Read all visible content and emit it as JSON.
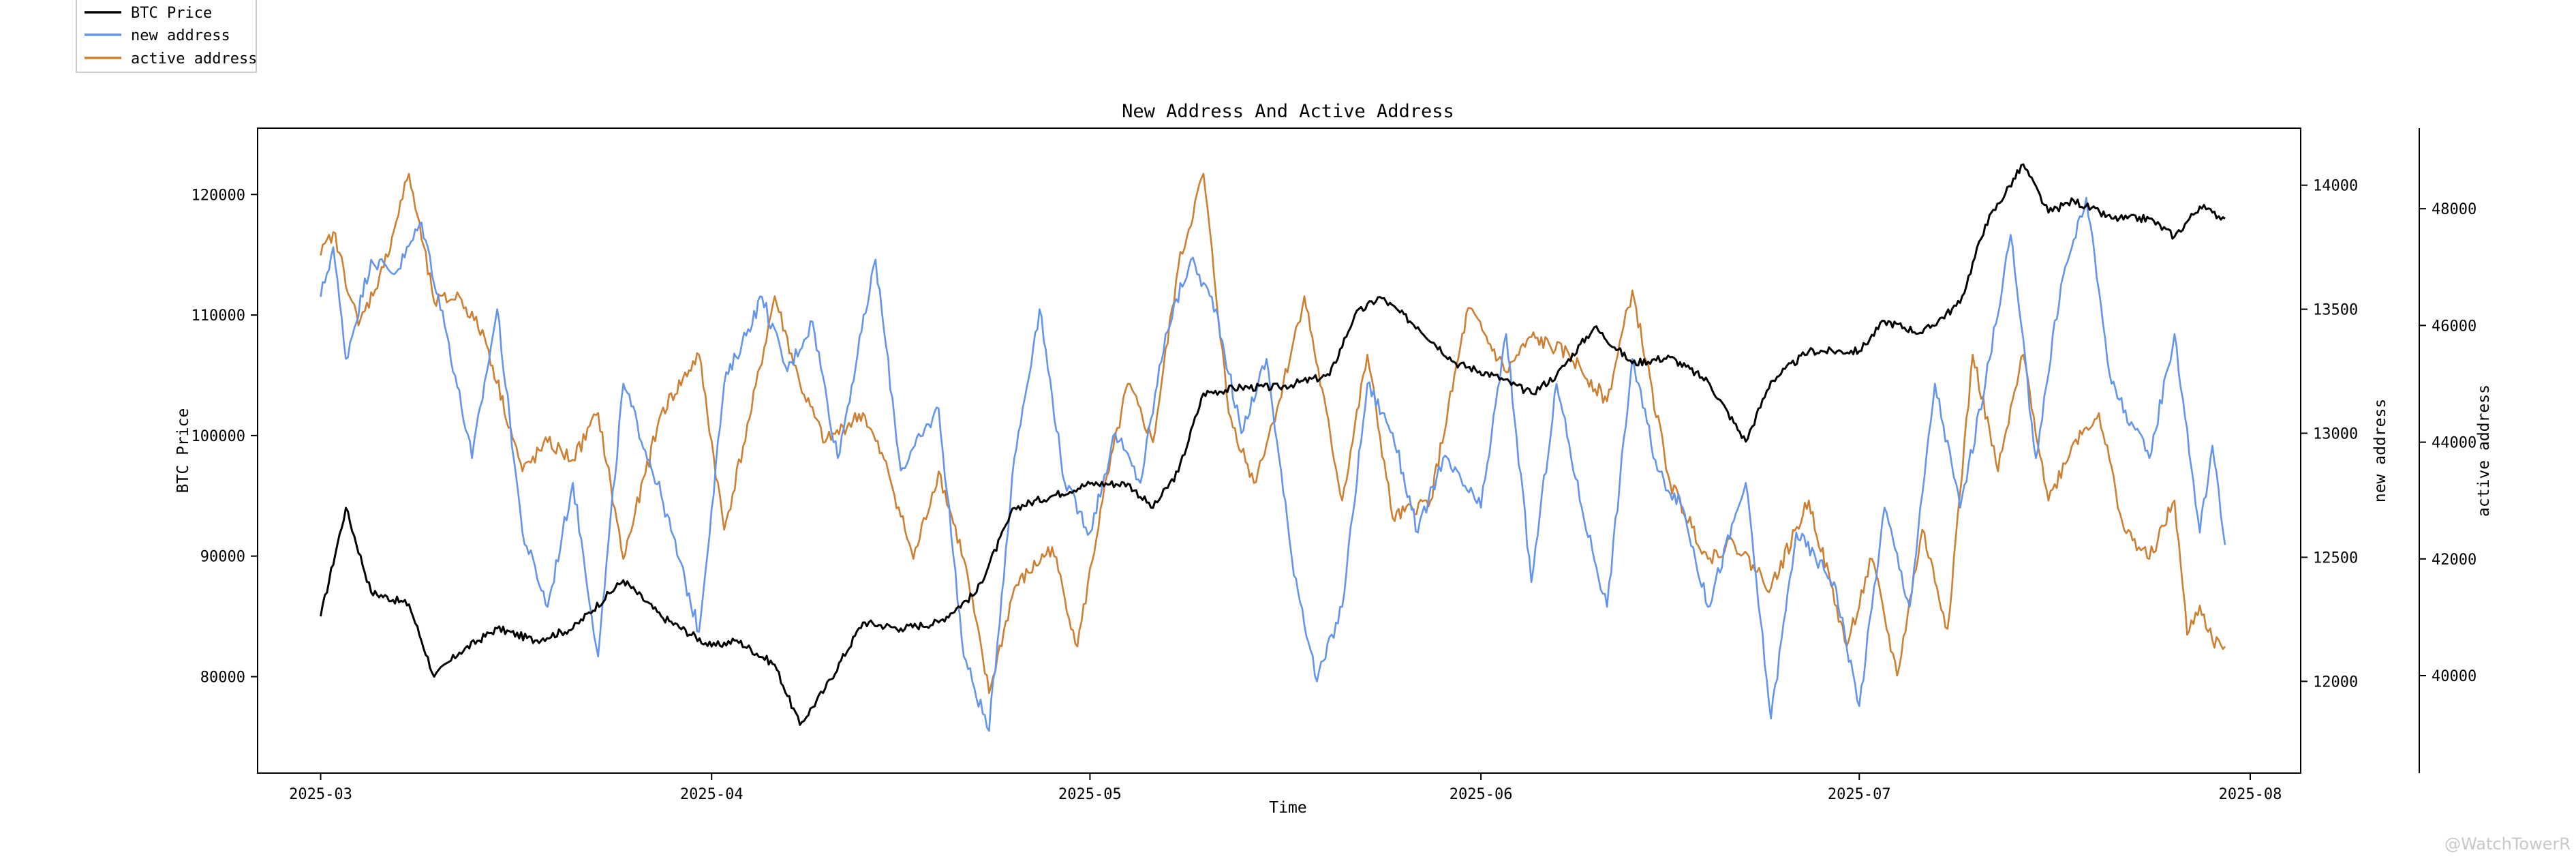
{
  "chart_data": {
    "type": "line",
    "title": "New Address And Active Address",
    "xlabel": "Time",
    "x_ticks": [
      "2025-03",
      "2025-04",
      "2025-05",
      "2025-06",
      "2025-07",
      "2025-08"
    ],
    "x_range": [
      "2025-02-24",
      "2025-08-05"
    ],
    "legend_placement": "top-left, outside the axes",
    "grid": false,
    "axes": [
      {
        "id": "price",
        "side": "left",
        "label": "BTC Price",
        "ticks": [
          80000,
          90000,
          100000,
          110000,
          120000
        ],
        "range": [
          72000,
          125500
        ]
      },
      {
        "id": "new",
        "side": "right",
        "label": "new address",
        "ticks": [
          12000,
          12500,
          13000,
          13500,
          14000
        ],
        "range": [
          11630,
          14230
        ]
      },
      {
        "id": "active",
        "side": "right-outer",
        "label": "active address",
        "ticks": [
          40000,
          42000,
          44000,
          46000,
          48000
        ],
        "range": [
          38330,
          49380
        ]
      }
    ],
    "series": [
      {
        "name": "BTC Price",
        "axis": "price",
        "color": "#000000",
        "points": [
          [
            "2025-03-01",
            85000
          ],
          [
            "2025-03-03",
            94000
          ],
          [
            "2025-03-05",
            87000
          ],
          [
            "2025-03-08",
            86000
          ],
          [
            "2025-03-10",
            80000
          ],
          [
            "2025-03-12",
            82000
          ],
          [
            "2025-03-15",
            84000
          ],
          [
            "2025-03-18",
            83000
          ],
          [
            "2025-03-21",
            84000
          ],
          [
            "2025-03-25",
            88000
          ],
          [
            "2025-03-28",
            85000
          ],
          [
            "2025-04-01",
            82500
          ],
          [
            "2025-04-03",
            83000
          ],
          [
            "2025-04-06",
            81000
          ],
          [
            "2025-04-08",
            76000
          ],
          [
            "2025-04-10",
            79000
          ],
          [
            "2025-04-13",
            84500
          ],
          [
            "2025-04-16",
            84000
          ],
          [
            "2025-04-19",
            84500
          ],
          [
            "2025-04-22",
            87000
          ],
          [
            "2025-04-25",
            94000
          ],
          [
            "2025-04-28",
            95000
          ],
          [
            "2025-05-01",
            96000
          ],
          [
            "2025-05-04",
            96000
          ],
          [
            "2025-05-06",
            94000
          ],
          [
            "2025-05-08",
            97000
          ],
          [
            "2025-05-10",
            103500
          ],
          [
            "2025-05-13",
            104000
          ],
          [
            "2025-05-16",
            104000
          ],
          [
            "2025-05-20",
            105000
          ],
          [
            "2025-05-22",
            110000
          ],
          [
            "2025-05-24",
            111500
          ],
          [
            "2025-05-27",
            109000
          ],
          [
            "2025-05-30",
            106000
          ],
          [
            "2025-06-02",
            105000
          ],
          [
            "2025-06-05",
            103500
          ],
          [
            "2025-06-07",
            105000
          ],
          [
            "2025-06-10",
            109000
          ],
          [
            "2025-06-13",
            106000
          ],
          [
            "2025-06-16",
            106500
          ],
          [
            "2025-06-19",
            104500
          ],
          [
            "2025-06-22",
            99500
          ],
          [
            "2025-06-24",
            104500
          ],
          [
            "2025-06-27",
            107000
          ],
          [
            "2025-07-01",
            107000
          ],
          [
            "2025-07-03",
            109500
          ],
          [
            "2025-07-06",
            108500
          ],
          [
            "2025-07-09",
            111000
          ],
          [
            "2025-07-11",
            117500
          ],
          [
            "2025-07-14",
            122500
          ],
          [
            "2025-07-16",
            118500
          ],
          [
            "2025-07-18",
            119500
          ],
          [
            "2025-07-21",
            118000
          ],
          [
            "2025-07-24",
            118000
          ],
          [
            "2025-07-26",
            116500
          ],
          [
            "2025-07-28",
            119000
          ],
          [
            "2025-07-29",
            118500
          ],
          [
            "2025-07-30",
            118000
          ]
        ]
      },
      {
        "name": "new address",
        "axis": "new",
        "color": "#6495ed",
        "points": [
          [
            "2025-03-01",
            13550
          ],
          [
            "2025-03-02",
            13750
          ],
          [
            "2025-03-03",
            13300
          ],
          [
            "2025-03-05",
            13700
          ],
          [
            "2025-03-07",
            13650
          ],
          [
            "2025-03-09",
            13850
          ],
          [
            "2025-03-11",
            13400
          ],
          [
            "2025-03-13",
            12900
          ],
          [
            "2025-03-15",
            13500
          ],
          [
            "2025-03-17",
            12600
          ],
          [
            "2025-03-19",
            12300
          ],
          [
            "2025-03-21",
            12800
          ],
          [
            "2025-03-23",
            12100
          ],
          [
            "2025-03-25",
            13200
          ],
          [
            "2025-03-28",
            12750
          ],
          [
            "2025-03-31",
            12200
          ],
          [
            "2025-04-02",
            13200
          ],
          [
            "2025-04-05",
            13550
          ],
          [
            "2025-04-07",
            13250
          ],
          [
            "2025-04-09",
            13450
          ],
          [
            "2025-04-11",
            12900
          ],
          [
            "2025-04-14",
            13700
          ],
          [
            "2025-04-16",
            12850
          ],
          [
            "2025-04-19",
            13100
          ],
          [
            "2025-04-21",
            12100
          ],
          [
            "2025-04-23",
            11800
          ],
          [
            "2025-04-25",
            12900
          ],
          [
            "2025-04-27",
            13500
          ],
          [
            "2025-04-29",
            12800
          ],
          [
            "2025-05-01",
            12600
          ],
          [
            "2025-05-03",
            13000
          ],
          [
            "2025-05-05",
            12800
          ],
          [
            "2025-05-07",
            13400
          ],
          [
            "2025-05-09",
            13700
          ],
          [
            "2025-05-11",
            13500
          ],
          [
            "2025-05-13",
            13000
          ],
          [
            "2025-05-15",
            13300
          ],
          [
            "2025-05-17",
            12500
          ],
          [
            "2025-05-19",
            12000
          ],
          [
            "2025-05-21",
            12300
          ],
          [
            "2025-05-23",
            13200
          ],
          [
            "2025-05-25",
            13000
          ],
          [
            "2025-05-27",
            12600
          ],
          [
            "2025-05-29",
            12900
          ],
          [
            "2025-06-01",
            12700
          ],
          [
            "2025-06-03",
            13400
          ],
          [
            "2025-06-05",
            12400
          ],
          [
            "2025-06-07",
            13200
          ],
          [
            "2025-06-09",
            12700
          ],
          [
            "2025-06-11",
            12300
          ],
          [
            "2025-06-13",
            13300
          ],
          [
            "2025-06-15",
            12850
          ],
          [
            "2025-06-17",
            12700
          ],
          [
            "2025-06-19",
            12300
          ],
          [
            "2025-06-22",
            12800
          ],
          [
            "2025-06-24",
            11850
          ],
          [
            "2025-06-26",
            12600
          ],
          [
            "2025-06-29",
            12400
          ],
          [
            "2025-07-01",
            11900
          ],
          [
            "2025-07-03",
            12700
          ],
          [
            "2025-07-05",
            12300
          ],
          [
            "2025-07-07",
            13200
          ],
          [
            "2025-07-09",
            12700
          ],
          [
            "2025-07-11",
            13200
          ],
          [
            "2025-07-13",
            13800
          ],
          [
            "2025-07-15",
            12900
          ],
          [
            "2025-07-17",
            13600
          ],
          [
            "2025-07-19",
            13950
          ],
          [
            "2025-07-21",
            13200
          ],
          [
            "2025-07-24",
            12900
          ],
          [
            "2025-07-26",
            13400
          ],
          [
            "2025-07-28",
            12600
          ],
          [
            "2025-07-29",
            12950
          ],
          [
            "2025-07-30",
            12550
          ]
        ]
      },
      {
        "name": "active address",
        "axis": "active",
        "color": "#cd7f32",
        "points": [
          [
            "2025-03-01",
            47200
          ],
          [
            "2025-03-02",
            47600
          ],
          [
            "2025-03-04",
            46000
          ],
          [
            "2025-03-06",
            47000
          ],
          [
            "2025-03-08",
            48600
          ],
          [
            "2025-03-10",
            46400
          ],
          [
            "2025-03-12",
            46500
          ],
          [
            "2025-03-14",
            45800
          ],
          [
            "2025-03-17",
            43500
          ],
          [
            "2025-03-19",
            44000
          ],
          [
            "2025-03-21",
            43700
          ],
          [
            "2025-03-23",
            44500
          ],
          [
            "2025-03-25",
            42000
          ],
          [
            "2025-03-28",
            44500
          ],
          [
            "2025-03-31",
            45500
          ],
          [
            "2025-04-02",
            42500
          ],
          [
            "2025-04-04",
            44400
          ],
          [
            "2025-04-06",
            46500
          ],
          [
            "2025-04-08",
            45000
          ],
          [
            "2025-04-10",
            44000
          ],
          [
            "2025-04-13",
            44500
          ],
          [
            "2025-04-15",
            43500
          ],
          [
            "2025-04-17",
            42000
          ],
          [
            "2025-04-19",
            43500
          ],
          [
            "2025-04-21",
            42000
          ],
          [
            "2025-04-23",
            39700
          ],
          [
            "2025-04-25",
            41500
          ],
          [
            "2025-04-28",
            42200
          ],
          [
            "2025-04-30",
            40500
          ],
          [
            "2025-05-02",
            43000
          ],
          [
            "2025-05-04",
            45000
          ],
          [
            "2025-05-06",
            44000
          ],
          [
            "2025-05-08",
            47000
          ],
          [
            "2025-05-10",
            48600
          ],
          [
            "2025-05-12",
            44500
          ],
          [
            "2025-05-14",
            43300
          ],
          [
            "2025-05-16",
            44700
          ],
          [
            "2025-05-18",
            46500
          ],
          [
            "2025-05-21",
            43000
          ],
          [
            "2025-05-23",
            45500
          ],
          [
            "2025-05-25",
            42700
          ],
          [
            "2025-05-28",
            43000
          ],
          [
            "2025-05-31",
            46300
          ],
          [
            "2025-06-03",
            45200
          ],
          [
            "2025-06-05",
            45800
          ],
          [
            "2025-06-08",
            45500
          ],
          [
            "2025-06-11",
            44700
          ],
          [
            "2025-06-13",
            46600
          ],
          [
            "2025-06-16",
            43300
          ],
          [
            "2025-06-19",
            42000
          ],
          [
            "2025-06-21",
            42300
          ],
          [
            "2025-06-24",
            41500
          ],
          [
            "2025-06-27",
            43000
          ],
          [
            "2025-06-30",
            40500
          ],
          [
            "2025-07-02",
            42000
          ],
          [
            "2025-07-04",
            40000
          ],
          [
            "2025-07-06",
            42500
          ],
          [
            "2025-07-08",
            40800
          ],
          [
            "2025-07-10",
            45500
          ],
          [
            "2025-07-12",
            43500
          ],
          [
            "2025-07-14",
            45500
          ],
          [
            "2025-07-16",
            43000
          ],
          [
            "2025-07-18",
            44000
          ],
          [
            "2025-07-20",
            44500
          ],
          [
            "2025-07-22",
            42500
          ],
          [
            "2025-07-24",
            42000
          ],
          [
            "2025-07-26",
            43000
          ],
          [
            "2025-07-27",
            40700
          ],
          [
            "2025-07-28",
            41200
          ],
          [
            "2025-07-29",
            40600
          ],
          [
            "2025-07-30",
            40500
          ]
        ]
      }
    ]
  },
  "watermark": "@WatchTowerR"
}
